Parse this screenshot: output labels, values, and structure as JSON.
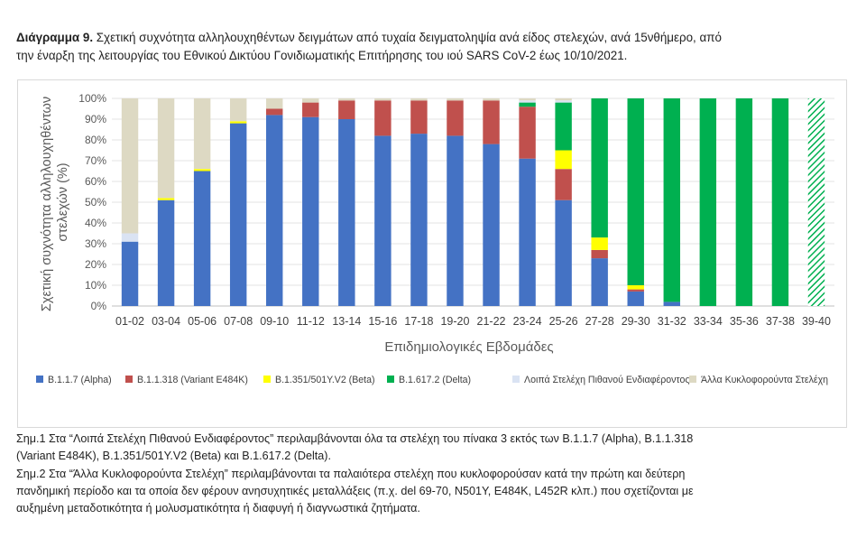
{
  "caption": {
    "label": "Διάγραμμα 9.",
    "text_line1": "Σχετική συχνότητα αλληλουχηθέντων δειγμάτων από τυχαία δειγματοληψία ανά είδος στελεχών, ανά 15νθήμερο, από",
    "text_line2": "την έναρξη της λειτουργίας του Εθνικού Δικτύου Γονιδιωματικής Επιτήρησης του ιού SARS CoV-2 έως 10/10/2021."
  },
  "notes": {
    "n1_line1": "Σημ.1 Στα “Λοιπά Στελέχη Πιθανού Ενδιαφέροντος” περιλαμβάνονται όλα τα στελέχη του πίνακα 3 εκτός των B.1.1.7 (Alpha), B.1.1.318",
    "n1_line2": "(Variant E484K), B.1.351/501Y.V2 (Beta) και B.1.617.2 (Delta).",
    "n2_line1": "Σημ.2 Στα “Άλλα Κυκλοφορούντα Στελέχη” περιλαμβάνονται τα παλαιότερα στελέχη που κυκλοφορούσαν κατά την πρώτη και δεύτερη",
    "n2_line2": "πανδημική περίοδο και τα οποία δεν φέρουν ανησυχητικές μεταλλάξεις (π.χ. del 69-70, N501Y, E484K, L452R κλπ.) που σχετίζονται με",
    "n2_line3": "αυξημένη μεταδοτικότητα ή μολυσματικότητα ή διαφυγή ή διαγνωστικά ζητήματα."
  },
  "chart_data": {
    "type": "bar",
    "stacked": true,
    "percent": true,
    "xlabel": "Επιδημιολογικές Εβδομάδες",
    "ylabel": "Σχετική συχνότητα αλληλουχηθέντων στελεχών (%)",
    "ylim": [
      0,
      100
    ],
    "yticks": [
      "0%",
      "10%",
      "20%",
      "30%",
      "40%",
      "50%",
      "60%",
      "70%",
      "80%",
      "90%",
      "100%"
    ],
    "grid": true,
    "legend_position": "bottom",
    "categories": [
      "01-02",
      "03-04",
      "05-06",
      "07-08",
      "09-10",
      "11-12",
      "13-14",
      "15-16",
      "17-18",
      "19-20",
      "21-22",
      "23-24",
      "25-26",
      "27-28",
      "29-30",
      "31-32",
      "33-34",
      "35-36",
      "37-38",
      "39-40"
    ],
    "series": [
      {
        "name": "B.1.1.7 (Alpha)",
        "color": "#4472c4",
        "values": [
          31,
          51,
          65,
          88,
          92,
          91,
          90,
          82,
          83,
          82,
          78,
          71,
          51,
          23,
          7,
          2,
          0,
          0,
          0,
          0
        ]
      },
      {
        "name": "B.1.1.318 (Variant E484K)",
        "color": "#c0504d",
        "values": [
          0,
          0,
          0,
          0,
          3,
          7,
          9,
          17,
          16,
          17,
          21,
          25,
          15,
          4,
          1,
          0,
          0,
          0,
          0,
          0
        ]
      },
      {
        "name": "B.1.351/501Y.V2 (Beta)",
        "color": "#ffff00",
        "values": [
          0,
          1,
          1,
          1,
          0,
          0,
          0,
          0,
          0,
          0,
          0,
          0,
          9,
          6,
          2,
          0,
          0,
          0,
          0,
          0
        ]
      },
      {
        "name": "B.1.617.2 (Delta)",
        "color": "#00b050",
        "values": [
          0,
          0,
          0,
          0,
          0,
          0,
          0,
          0,
          0,
          0,
          0,
          2,
          23,
          67,
          90,
          98,
          100,
          100,
          100,
          100
        ]
      },
      {
        "name": "Λοιπά Στελέχη Πιθανού Ενδιαφέροντος",
        "color": "#dae3f3",
        "values": [
          4,
          0,
          0,
          0,
          0,
          0,
          0,
          0,
          0,
          0,
          0,
          1,
          1,
          0,
          0,
          0,
          0,
          0,
          0,
          0
        ]
      },
      {
        "name": "Άλλα Κυκλοφορούντα Στελέχη",
        "color": "#ddd9c3",
        "values": [
          65,
          48,
          34,
          11,
          5,
          2,
          1,
          1,
          1,
          1,
          1,
          1,
          1,
          0,
          0,
          0,
          0,
          0,
          0,
          0
        ]
      }
    ],
    "hatched_categories": [
      "39-40"
    ]
  }
}
